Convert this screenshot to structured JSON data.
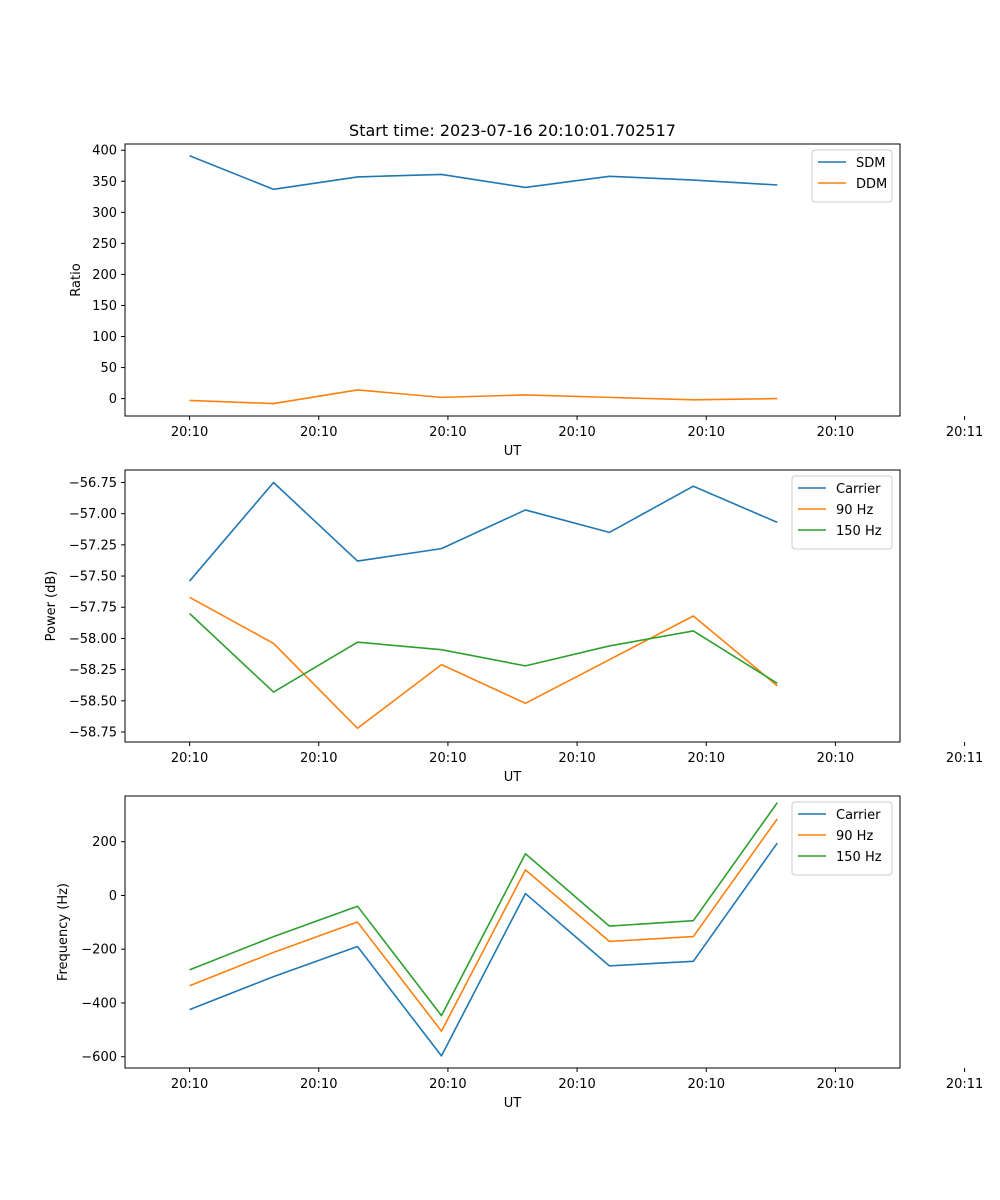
{
  "chart_data": [
    {
      "type": "line",
      "title": "Start time: 2023-07-16 20:10:01.702517",
      "xlabel": "UT",
      "ylabel": "Ratio",
      "x_ticks": [
        "20:10",
        "20:10",
        "20:10",
        "20:10",
        "20:10",
        "20:10",
        "20:11"
      ],
      "y_ticks": [
        0,
        50,
        100,
        150,
        200,
        250,
        300,
        350,
        400
      ],
      "y_tick_decimals": 0,
      "xlim": [
        -0.5,
        5.5
      ],
      "ylim": [
        -28,
        410
      ],
      "x": [
        0,
        0.65,
        1.3,
        1.95,
        2.6,
        3.25,
        3.9,
        4.55
      ],
      "series": [
        {
          "name": "SDM",
          "color": "#1f77b4",
          "values": [
            391,
            337,
            357,
            361,
            340,
            358,
            352,
            344
          ]
        },
        {
          "name": "DDM",
          "color": "#ff7f0e",
          "values": [
            -3,
            -8,
            14,
            2,
            6,
            2,
            -2,
            0
          ]
        }
      ],
      "legend": "top-right"
    },
    {
      "type": "line",
      "title": "",
      "xlabel": "UT",
      "ylabel": "Power (dB)",
      "x_ticks": [
        "20:10",
        "20:10",
        "20:10",
        "20:10",
        "20:10",
        "20:10",
        "20:11"
      ],
      "y_ticks": [
        -58.75,
        -58.5,
        -58.25,
        -58.0,
        -57.75,
        -57.5,
        -57.25,
        -57.0,
        -56.75
      ],
      "y_tick_decimals": 2,
      "xlim": [
        -0.5,
        5.5
      ],
      "ylim": [
        -58.83,
        -56.65
      ],
      "x": [
        0,
        0.65,
        1.3,
        1.95,
        2.6,
        3.25,
        3.9,
        4.55
      ],
      "series": [
        {
          "name": "Carrier",
          "color": "#1f77b4",
          "values": [
            -57.54,
            -56.75,
            -57.38,
            -57.28,
            -56.97,
            -57.15,
            -56.78,
            -57.07
          ]
        },
        {
          "name": "90 Hz",
          "color": "#ff7f0e",
          "values": [
            -57.67,
            -58.04,
            -58.72,
            -58.21,
            -58.52,
            -58.17,
            -57.82,
            -58.38
          ]
        },
        {
          "name": "150 Hz",
          "color": "#2ca02c",
          "values": [
            -57.8,
            -58.43,
            -58.03,
            -58.09,
            -58.22,
            -58.06,
            -57.94,
            -58.36
          ]
        }
      ],
      "legend": "top-right"
    },
    {
      "type": "line",
      "title": "",
      "xlabel": "UT",
      "ylabel": "Frequency (Hz)",
      "x_ticks": [
        "20:10",
        "20:10",
        "20:10",
        "20:10",
        "20:10",
        "20:10",
        "20:11"
      ],
      "y_ticks": [
        -600,
        -400,
        -200,
        0,
        200
      ],
      "y_tick_decimals": 0,
      "xlim": [
        -0.5,
        5.5
      ],
      "ylim": [
        -642,
        370
      ],
      "x": [
        0,
        0.65,
        1.3,
        1.95,
        2.6,
        3.25,
        3.9,
        4.55
      ],
      "series": [
        {
          "name": "Carrier",
          "color": "#1f77b4",
          "values": [
            -425,
            -302,
            -190,
            -597,
            7,
            -262,
            -245,
            195
          ]
        },
        {
          "name": "90 Hz",
          "color": "#ff7f0e",
          "values": [
            -336,
            -212,
            -99,
            -505,
            95,
            -171,
            -153,
            285
          ]
        },
        {
          "name": "150 Hz",
          "color": "#2ca02c",
          "values": [
            -277,
            -153,
            -40,
            -447,
            155,
            -114,
            -94,
            345
          ]
        }
      ],
      "legend": "top-right"
    }
  ]
}
